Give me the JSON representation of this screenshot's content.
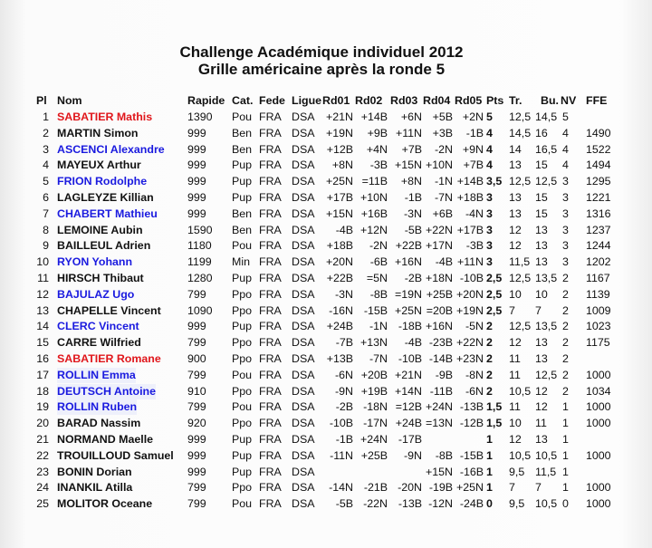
{
  "title": "Challenge Académique individuel 2012",
  "subtitle": "Grille américaine après la ronde 5",
  "colors": {
    "red": "#e0161b",
    "blue": "#1a1adf"
  },
  "headers": [
    "Pl",
    "Nom",
    "Rapide",
    "Cat.",
    "Fede",
    "Ligue",
    "Rd01",
    "Rd02",
    "Rd03",
    "Rd04",
    "Rd05",
    "Pts",
    "Tr.",
    "Bu.",
    "NV",
    "FFE"
  ],
  "rows": [
    {
      "pl": "1",
      "nom": "SABATIER Mathis",
      "color": "red",
      "rapide": "1390",
      "cat": "Pou",
      "fede": "FRA",
      "ligue": "DSA",
      "rd": [
        "+21N",
        "+14B",
        "+6N",
        "+5B",
        "+2N"
      ],
      "pts": "5",
      "tr": "12,5",
      "bu": "14,5",
      "nv": "5",
      "ffe": ""
    },
    {
      "pl": "2",
      "nom": "MARTIN Simon",
      "color": "black",
      "rapide": "999",
      "cat": "Ben",
      "fede": "FRA",
      "ligue": "DSA",
      "rd": [
        "+19N",
        "+9B",
        "+11N",
        "+3B",
        "-1B"
      ],
      "pts": "4",
      "tr": "14,5",
      "bu": "16",
      "nv": "4",
      "ffe": "1490"
    },
    {
      "pl": "3",
      "nom": "ASCENCI Alexandre",
      "color": "blue",
      "rapide": "999",
      "cat": "Ben",
      "fede": "FRA",
      "ligue": "DSA",
      "rd": [
        "+12B",
        "+4N",
        "+7B",
        "-2N",
        "+9N"
      ],
      "pts": "4",
      "tr": "14",
      "bu": "16,5",
      "nv": "4",
      "ffe": "1522"
    },
    {
      "pl": "4",
      "nom": "MAYEUX Arthur",
      "color": "black",
      "rapide": "999",
      "cat": "Pup",
      "fede": "FRA",
      "ligue": "DSA",
      "rd": [
        "+8N",
        "-3B",
        "+15N",
        "+10N",
        "+7B"
      ],
      "pts": "4",
      "tr": "13",
      "bu": "15",
      "nv": "4",
      "ffe": "1494"
    },
    {
      "pl": "5",
      "nom": "FRION Rodolphe",
      "color": "blue",
      "rapide": "999",
      "cat": "Pup",
      "fede": "FRA",
      "ligue": "DSA",
      "rd": [
        "+25N",
        "=11B",
        "+8N",
        "-1N",
        "+14B"
      ],
      "pts": "3,5",
      "tr": "12,5",
      "bu": "12,5",
      "nv": "3",
      "ffe": "1295"
    },
    {
      "pl": "6",
      "nom": "LAGLEYZE Killian",
      "color": "black",
      "rapide": "999",
      "cat": "Pup",
      "fede": "FRA",
      "ligue": "DSA",
      "rd": [
        "+17B",
        "+10N",
        "-1B",
        "-7N",
        "+18B"
      ],
      "pts": "3",
      "tr": "13",
      "bu": "15",
      "nv": "3",
      "ffe": "1221"
    },
    {
      "pl": "7",
      "nom": "CHABERT Mathieu",
      "color": "blue",
      "rapide": "999",
      "cat": "Ben",
      "fede": "FRA",
      "ligue": "DSA",
      "rd": [
        "+15N",
        "+16B",
        "-3N",
        "+6B",
        "-4N"
      ],
      "pts": "3",
      "tr": "13",
      "bu": "15",
      "nv": "3",
      "ffe": "1316"
    },
    {
      "pl": "8",
      "nom": "LEMOINE Aubin",
      "color": "black",
      "rapide": "1590",
      "cat": "Ben",
      "fede": "FRA",
      "ligue": "DSA",
      "rd": [
        "-4B",
        "+12N",
        "-5B",
        "+22N",
        "+17B"
      ],
      "pts": "3",
      "tr": "12",
      "bu": "13",
      "nv": "3",
      "ffe": "1237"
    },
    {
      "pl": "9",
      "nom": "BAILLEUL Adrien",
      "color": "black",
      "rapide": "1180",
      "cat": "Pou",
      "fede": "FRA",
      "ligue": "DSA",
      "rd": [
        "+18B",
        "-2N",
        "+22B",
        "+17N",
        "-3B"
      ],
      "pts": "3",
      "tr": "12",
      "bu": "13",
      "nv": "3",
      "ffe": "1244"
    },
    {
      "pl": "10",
      "nom": "RYON Yohann",
      "color": "blue",
      "rapide": "1199",
      "cat": "Min",
      "fede": "FRA",
      "ligue": "DSA",
      "rd": [
        "+20N",
        "-6B",
        "+16N",
        "-4B",
        "+11N"
      ],
      "pts": "3",
      "tr": "11,5",
      "bu": "13",
      "nv": "3",
      "ffe": "1202"
    },
    {
      "pl": "11",
      "nom": "HIRSCH Thibaut",
      "color": "black",
      "rapide": "1280",
      "cat": "Pup",
      "fede": "FRA",
      "ligue": "DSA",
      "rd": [
        "+22B",
        "=5N",
        "-2B",
        "+18N",
        "-10B"
      ],
      "pts": "2,5",
      "tr": "12,5",
      "bu": "13,5",
      "nv": "2",
      "ffe": "1167"
    },
    {
      "pl": "12",
      "nom": "BAJULAZ Ugo",
      "color": "blue",
      "rapide": "799",
      "cat": "Ppo",
      "fede": "FRA",
      "ligue": "DSA",
      "rd": [
        "-3N",
        "-8B",
        "=19N",
        "+25B",
        "+20N"
      ],
      "pts": "2,5",
      "tr": "10",
      "bu": "10",
      "nv": "2",
      "ffe": "1139"
    },
    {
      "pl": "13",
      "nom": "CHAPELLE Vincent",
      "color": "black",
      "rapide": "1090",
      "cat": "Ppo",
      "fede": "FRA",
      "ligue": "DSA",
      "rd": [
        "-16N",
        "-15B",
        "+25N",
        "=20B",
        "+19N"
      ],
      "pts": "2,5",
      "tr": "7",
      "bu": "7",
      "nv": "2",
      "ffe": "1009"
    },
    {
      "pl": "14",
      "nom": "CLERC Vincent",
      "color": "blue",
      "rapide": "999",
      "cat": "Pup",
      "fede": "FRA",
      "ligue": "DSA",
      "rd": [
        "+24B",
        "-1N",
        "-18B",
        "+16N",
        "-5N"
      ],
      "pts": "2",
      "tr": "12,5",
      "bu": "13,5",
      "nv": "2",
      "ffe": "1023"
    },
    {
      "pl": "15",
      "nom": "CARRE Wilfried",
      "color": "black",
      "rapide": "799",
      "cat": "Ppo",
      "fede": "FRA",
      "ligue": "DSA",
      "rd": [
        "-7B",
        "+13N",
        "-4B",
        "-23B",
        "+22N"
      ],
      "pts": "2",
      "tr": "12",
      "bu": "13",
      "nv": "2",
      "ffe": "1175"
    },
    {
      "pl": "16",
      "nom": "SABATIER Romane",
      "color": "red",
      "rapide": "900",
      "cat": "Ppo",
      "fede": "FRA",
      "ligue": "DSA",
      "rd": [
        "+13B",
        "-7N",
        "-10B",
        "-14B",
        "+23N"
      ],
      "pts": "2",
      "tr": "11",
      "bu": "13",
      "nv": "2",
      "ffe": ""
    },
    {
      "pl": "17",
      "nom": "ROLLIN Emma",
      "color": "blue",
      "rapide": "799",
      "cat": "Pou",
      "fede": "FRA",
      "ligue": "DSA",
      "rd": [
        "-6N",
        "+20B",
        "+21N",
        "-9B",
        "-8N"
      ],
      "pts": "2",
      "tr": "11",
      "bu": "12,5",
      "nv": "2",
      "ffe": "1000"
    },
    {
      "pl": "18",
      "nom": "DEUTSCH Antoine",
      "color": "blue",
      "rapide": "910",
      "cat": "Ppo",
      "fede": "FRA",
      "ligue": "DSA",
      "rd": [
        "-9N",
        "+19B",
        "+14N",
        "-11B",
        "-6N"
      ],
      "pts": "2",
      "tr": "10,5",
      "bu": "12",
      "nv": "2",
      "ffe": "1034"
    },
    {
      "pl": "19",
      "nom": "ROLLIN Ruben",
      "color": "blue",
      "rapide": "799",
      "cat": "Pou",
      "fede": "FRA",
      "ligue": "DSA",
      "rd": [
        "-2B",
        "-18N",
        "=12B",
        "+24N",
        "-13B"
      ],
      "pts": "1,5",
      "tr": "11",
      "bu": "12",
      "nv": "1",
      "ffe": "1000"
    },
    {
      "pl": "20",
      "nom": "BARAD Nassim",
      "color": "black",
      "rapide": "920",
      "cat": "Ppo",
      "fede": "FRA",
      "ligue": "DSA",
      "rd": [
        "-10B",
        "-17N",
        "+24B",
        "=13N",
        "-12B"
      ],
      "pts": "1,5",
      "tr": "10",
      "bu": "11",
      "nv": "1",
      "ffe": "1000"
    },
    {
      "pl": "21",
      "nom": "NORMAND Maelle",
      "color": "black",
      "rapide": "999",
      "cat": "Pup",
      "fede": "FRA",
      "ligue": "DSA",
      "rd": [
        "-1B",
        "+24N",
        "-17B",
        "",
        ""
      ],
      "pts": "1",
      "tr": "12",
      "bu": "13",
      "nv": "1",
      "ffe": ""
    },
    {
      "pl": "22",
      "nom": "TROUILLOUD Samuel",
      "color": "black",
      "rapide": "999",
      "cat": "Pup",
      "fede": "FRA",
      "ligue": "DSA",
      "rd": [
        "-11N",
        "+25B",
        "-9N",
        "-8B",
        "-15B"
      ],
      "pts": "1",
      "tr": "10,5",
      "bu": "10,5",
      "nv": "1",
      "ffe": "1000"
    },
    {
      "pl": "23",
      "nom": "BONIN Dorian",
      "color": "black",
      "rapide": "999",
      "cat": "Pup",
      "fede": "FRA",
      "ligue": "DSA",
      "rd": [
        "",
        "",
        "",
        "+15N",
        "-16B"
      ],
      "pts": "1",
      "tr": "9,5",
      "bu": "11,5",
      "nv": "1",
      "ffe": ""
    },
    {
      "pl": "24",
      "nom": "INANKIL Atilla",
      "color": "black",
      "rapide": "799",
      "cat": "Ppo",
      "fede": "FRA",
      "ligue": "DSA",
      "rd": [
        "-14N",
        "-21B",
        "-20N",
        "-19B",
        "+25N"
      ],
      "pts": "1",
      "tr": "7",
      "bu": "7",
      "nv": "1",
      "ffe": "1000"
    },
    {
      "pl": "25",
      "nom": "MOLITOR Oceane",
      "color": "black",
      "rapide": "799",
      "cat": "Pou",
      "fede": "FRA",
      "ligue": "DSA",
      "rd": [
        "-5B",
        "-22N",
        "-13B",
        "-12N",
        "-24B"
      ],
      "pts": "0",
      "tr": "9,5",
      "bu": "10,5",
      "nv": "0",
      "ffe": "1000"
    }
  ]
}
